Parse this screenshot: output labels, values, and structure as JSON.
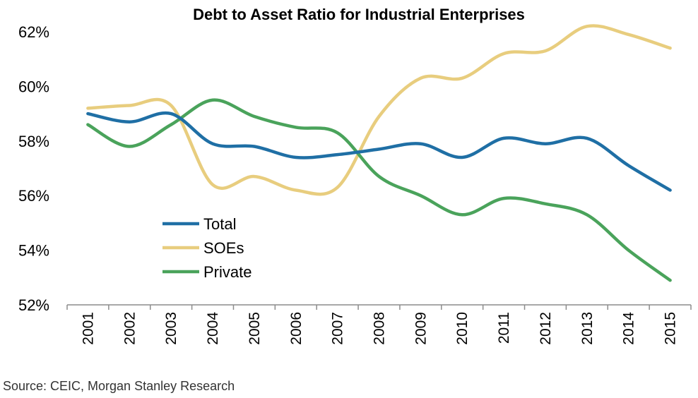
{
  "chart_data": {
    "type": "line",
    "title": "Debt to Asset Ratio for Industrial Enterprises",
    "xlabel": "",
    "ylabel": "",
    "x": [
      "2001",
      "2002",
      "2003",
      "2004",
      "2005",
      "2006",
      "2007",
      "2008",
      "2009",
      "2010",
      "2011",
      "2012",
      "2013",
      "2014",
      "2015"
    ],
    "ylim": [
      52,
      62
    ],
    "yticks": [
      52,
      54,
      56,
      58,
      60,
      62
    ],
    "ytick_labels": [
      "52%",
      "54%",
      "56%",
      "58%",
      "60%",
      "62%"
    ],
    "grid": false,
    "smooth": true,
    "legend_position": "lower-left",
    "series": [
      {
        "name": "Total",
        "color": "#1f6fa5",
        "values": [
          59.0,
          58.7,
          59.0,
          57.9,
          57.8,
          57.4,
          57.5,
          57.7,
          57.9,
          57.4,
          58.1,
          57.9,
          58.1,
          57.1,
          56.2
        ]
      },
      {
        "name": "SOEs",
        "color": "#e8cd7e",
        "values": [
          59.2,
          59.3,
          59.3,
          56.4,
          56.7,
          56.2,
          56.3,
          58.9,
          60.3,
          60.3,
          61.2,
          61.3,
          62.2,
          61.9,
          61.4
        ]
      },
      {
        "name": "Private",
        "color": "#4aa35b",
        "values": [
          58.6,
          57.8,
          58.6,
          59.5,
          58.9,
          58.5,
          58.3,
          56.7,
          56.0,
          55.3,
          55.9,
          55.7,
          55.3,
          54.0,
          52.9
        ]
      }
    ]
  },
  "source": "Source: CEIC, Morgan Stanley Research"
}
